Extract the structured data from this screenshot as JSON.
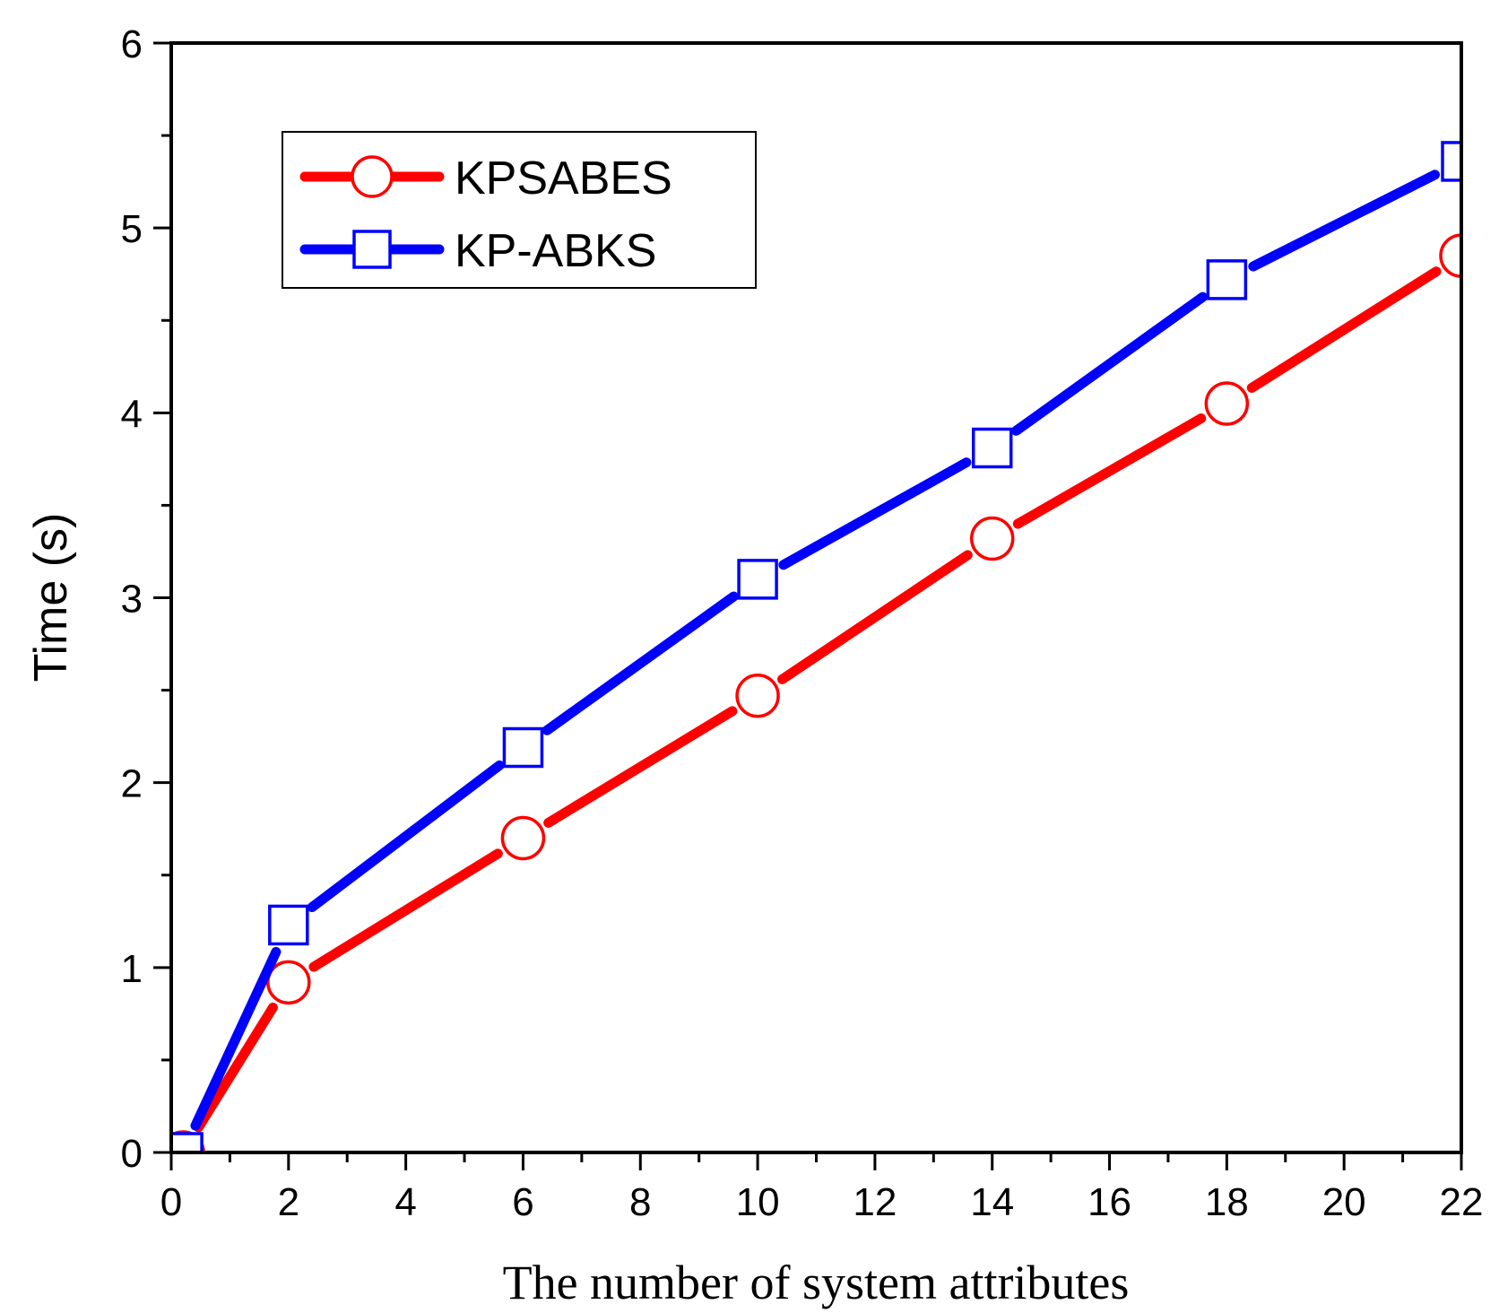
{
  "chart_data": {
    "type": "line",
    "title": "",
    "xlabel": "The number of system attributes",
    "ylabel": "Time (s)",
    "xlim": [
      0,
      22
    ],
    "ylim": [
      0,
      6
    ],
    "x_ticks": [
      0,
      2,
      4,
      6,
      8,
      10,
      12,
      14,
      16,
      18,
      20,
      22
    ],
    "y_ticks": [
      0,
      1,
      2,
      3,
      4,
      5,
      6
    ],
    "grid": false,
    "legend_position": "top-left",
    "series": [
      {
        "name": "KPSABES",
        "color": "#ff0000",
        "marker": "circle",
        "x": [
          0.2,
          2,
          6,
          10,
          14,
          18,
          22
        ],
        "values": [
          0.0,
          0.92,
          1.7,
          2.47,
          3.32,
          4.05,
          4.85
        ]
      },
      {
        "name": "KP-ABKS",
        "color": "#0000ff",
        "marker": "square",
        "x": [
          0.2,
          2,
          6,
          10,
          14,
          18,
          22
        ],
        "values": [
          0.0,
          1.23,
          2.19,
          3.1,
          3.81,
          4.72,
          5.36
        ]
      }
    ]
  }
}
